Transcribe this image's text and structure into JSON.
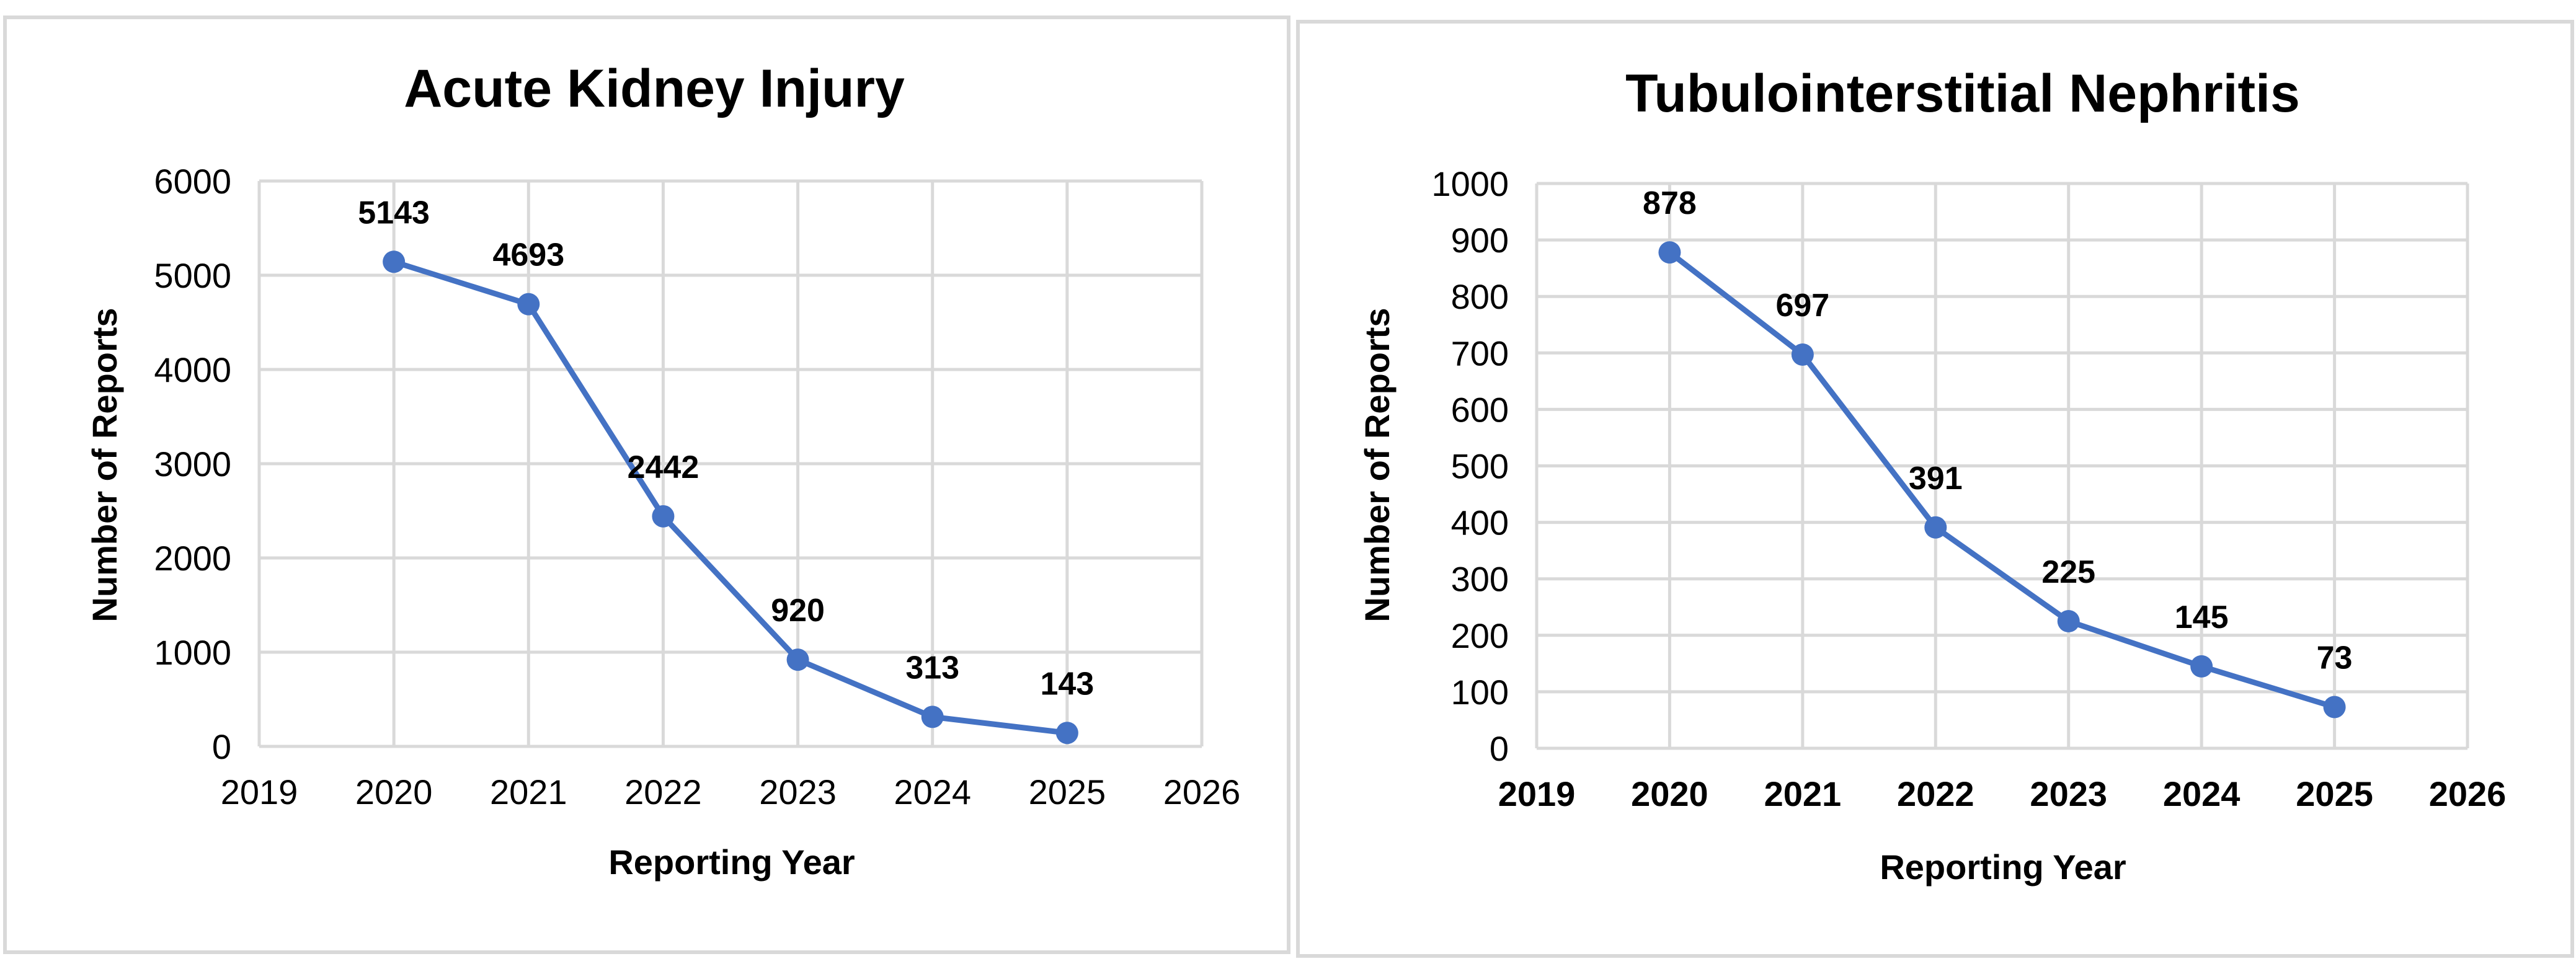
{
  "chart_data": [
    {
      "type": "line",
      "title": "Acute Kidney Injury",
      "xlabel": "Reporting Year",
      "ylabel": "Number of Reports",
      "x": [
        2020,
        2021,
        2022,
        2023,
        2024,
        2025
      ],
      "values": [
        5143,
        4693,
        2442,
        920,
        313,
        143
      ],
      "data_labels": [
        "5143",
        "4693",
        "2442",
        "920",
        "313",
        "143"
      ],
      "xlim": [
        2019,
        2026
      ],
      "ylim": [
        0,
        6000
      ],
      "x_ticks": [
        "2019",
        "2020",
        "2021",
        "2022",
        "2023",
        "2024",
        "2025",
        "2026"
      ],
      "y_ticks": [
        "0",
        "1000",
        "2000",
        "3000",
        "4000",
        "5000",
        "6000"
      ],
      "x_tick_values": [
        2019,
        2020,
        2021,
        2022,
        2023,
        2024,
        2025,
        2026
      ],
      "y_tick_values": [
        0,
        1000,
        2000,
        3000,
        4000,
        5000,
        6000
      ],
      "grid": true,
      "legend": "none",
      "x_tick_bold": false,
      "colors": {
        "series": "#4472C4",
        "grid": "#D9D9D9"
      }
    },
    {
      "type": "line",
      "title": "Tubulointerstitial Nephritis",
      "xlabel": "Reporting Year",
      "ylabel": "Number of Reports",
      "x": [
        2020,
        2021,
        2022,
        2023,
        2024,
        2025
      ],
      "values": [
        878,
        697,
        391,
        225,
        145,
        73
      ],
      "data_labels": [
        "878",
        "697",
        "391",
        "225",
        "145",
        "73"
      ],
      "xlim": [
        2019,
        2026
      ],
      "ylim": [
        0,
        1000
      ],
      "x_ticks": [
        "2019",
        "2020",
        "2021",
        "2022",
        "2023",
        "2024",
        "2025",
        "2026"
      ],
      "y_ticks": [
        "0",
        "100",
        "200",
        "300",
        "400",
        "500",
        "600",
        "700",
        "800",
        "900",
        "1000"
      ],
      "x_tick_values": [
        2019,
        2020,
        2021,
        2022,
        2023,
        2024,
        2025,
        2026
      ],
      "y_tick_values": [
        0,
        100,
        200,
        300,
        400,
        500,
        600,
        700,
        800,
        900,
        1000
      ],
      "grid": true,
      "legend": "none",
      "x_tick_bold": true,
      "colors": {
        "series": "#4472C4",
        "grid": "#D9D9D9"
      }
    }
  ]
}
